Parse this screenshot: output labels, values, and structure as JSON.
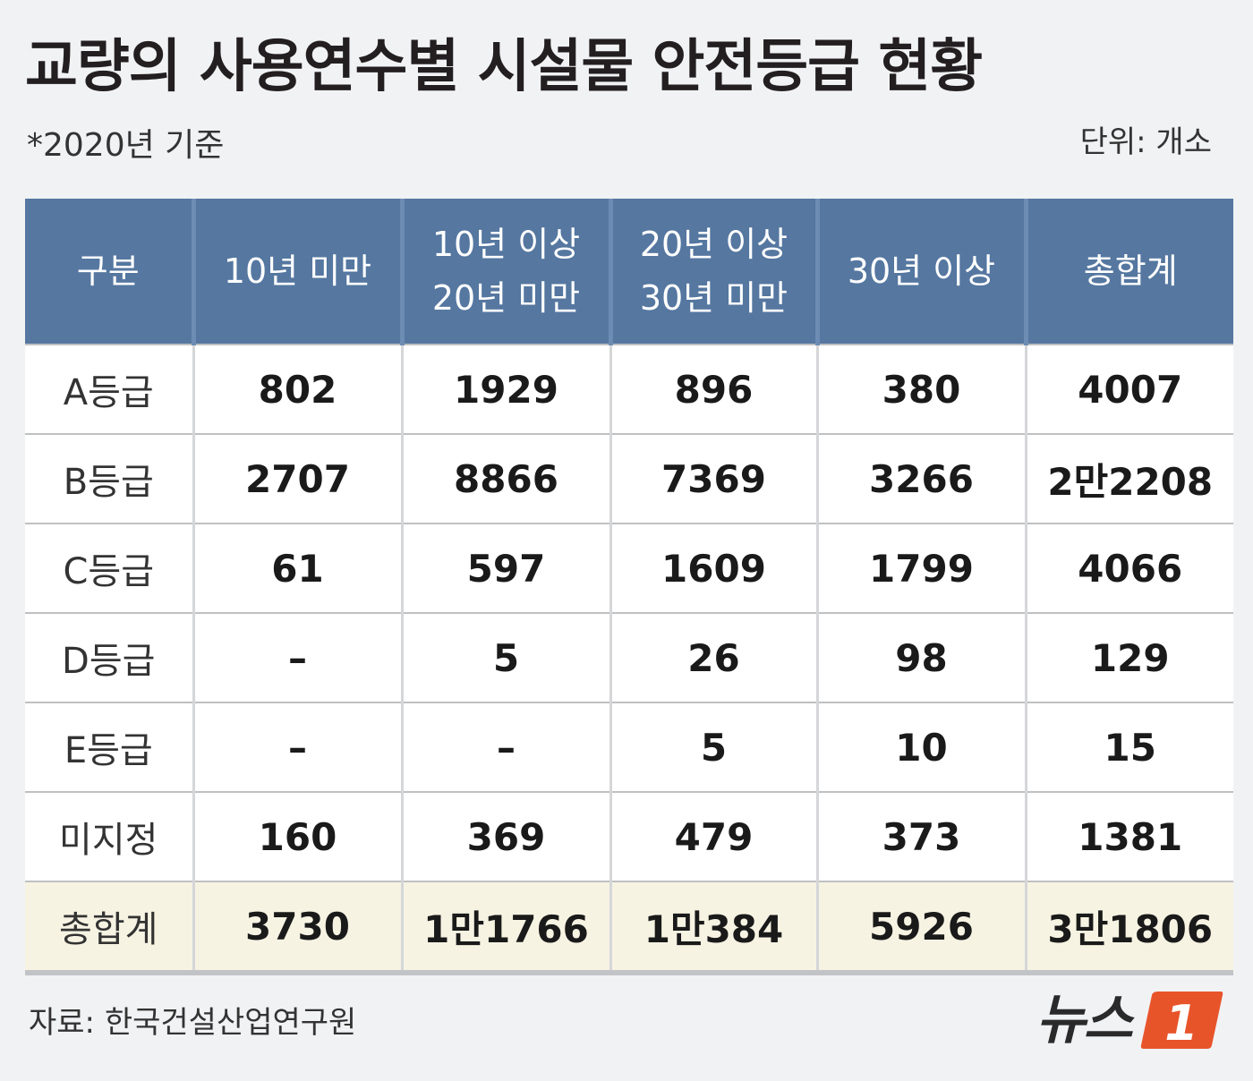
{
  "title": "교량의 사용연수별 시설물 안전등급 현황",
  "subtitle": "*2020년 기준",
  "unit": "단위: 개소",
  "source": "자료: 한국건설산업연구원",
  "logo": {
    "text": "뉴스",
    "mark": "1",
    "mark_color": "#e8542a"
  },
  "colors": {
    "header_bg": "#5577a0",
    "total_row_bg": "#f7f3e3"
  },
  "chart_data": {
    "type": "table",
    "title": "교량의 사용연수별 시설물 안전등급 현황",
    "columns": [
      {
        "line1": "구분",
        "line2": ""
      },
      {
        "line1": "10년 미만",
        "line2": ""
      },
      {
        "line1": "10년 이상",
        "line2": "20년 미만"
      },
      {
        "line1": "20년 이상",
        "line2": "30년 미만"
      },
      {
        "line1": "30년 이상",
        "line2": ""
      },
      {
        "line1": "총합계",
        "line2": ""
      }
    ],
    "rows": [
      {
        "label": "A등급",
        "values": [
          "802",
          "1929",
          "896",
          "380",
          "4007"
        ]
      },
      {
        "label": "B등급",
        "values": [
          "2707",
          "8866",
          "7369",
          "3266",
          "2만2208"
        ]
      },
      {
        "label": "C등급",
        "values": [
          "61",
          "597",
          "1609",
          "1799",
          "4066"
        ]
      },
      {
        "label": "D등급",
        "values": [
          "–",
          "5",
          "26",
          "98",
          "129"
        ]
      },
      {
        "label": "E등급",
        "values": [
          "–",
          "–",
          "5",
          "10",
          "15"
        ]
      },
      {
        "label": "미지정",
        "values": [
          "160",
          "369",
          "479",
          "373",
          "1381"
        ]
      },
      {
        "label": "총합계",
        "values": [
          "3730",
          "1만1766",
          "1만384",
          "5926",
          "3만1806"
        ]
      }
    ]
  }
}
